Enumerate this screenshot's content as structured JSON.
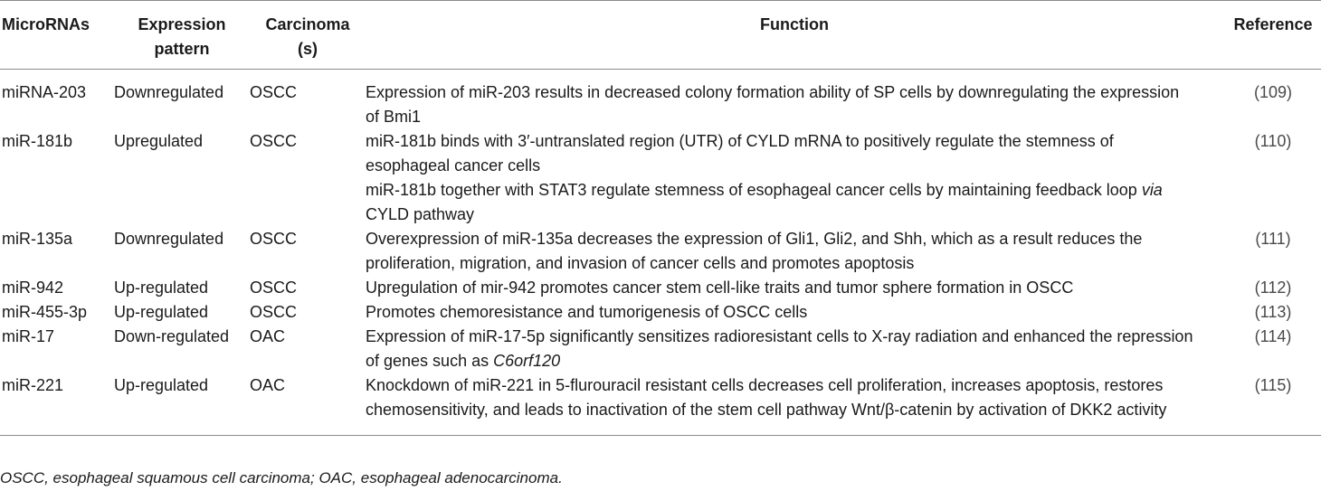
{
  "table": {
    "headers": {
      "microrna": "MicroRNAs",
      "expression_line1": "Expression",
      "expression_line2": "pattern",
      "carcinoma_line1": "Carcinoma",
      "carcinoma_line2": "(s)",
      "function": "Function",
      "reference": "Reference"
    },
    "rows": [
      {
        "microrna": "miRNA-203",
        "expression": "Downregulated",
        "carcinoma": "OSCC",
        "functions": [
          {
            "pre": "Expression of miR-203 results in decreased colony formation ability of SP cells by downregulating the expression of Bmi1",
            "italic": "",
            "post": ""
          }
        ],
        "reference": "(109)"
      },
      {
        "microrna": "miR-181b",
        "expression": "Upregulated",
        "carcinoma": "OSCC",
        "functions": [
          {
            "pre": "miR-181b binds with 3′-untranslated region (UTR) of CYLD mRNA to positively regulate the stemness of esophageal cancer cells",
            "italic": "",
            "post": ""
          },
          {
            "pre": "miR-181b together with STAT3 regulate stemness of esophageal cancer cells by maintaining feedback loop ",
            "italic": "via",
            "post": " CYLD pathway"
          }
        ],
        "reference": "(110)"
      },
      {
        "microrna": "miR-135a",
        "expression": "Downregulated",
        "carcinoma": "OSCC",
        "functions": [
          {
            "pre": "Overexpression of miR-135a decreases the expression of Gli1, Gli2, and Shh, which as a result reduces the proliferation, migration, and invasion of cancer cells and promotes apoptosis",
            "italic": "",
            "post": ""
          }
        ],
        "reference": "(111)"
      },
      {
        "microrna": "miR-942",
        "expression": "Up-regulated",
        "carcinoma": "OSCC",
        "functions": [
          {
            "pre": "Upregulation of mir-942 promotes cancer stem cell-like traits and tumor sphere formation in OSCC",
            "italic": "",
            "post": ""
          }
        ],
        "reference": "(112)"
      },
      {
        "microrna": "miR-455-3p",
        "expression": "Up-regulated",
        "carcinoma": "OSCC",
        "functions": [
          {
            "pre": "Promotes chemoresistance and tumorigenesis of OSCC cells",
            "italic": "",
            "post": ""
          }
        ],
        "reference": "(113)"
      },
      {
        "microrna": "miR-17",
        "expression": "Down-regulated",
        "carcinoma": "OAC",
        "functions": [
          {
            "pre": "Expression of miR-17-5p significantly sensitizes radioresistant cells to X-ray radiation and enhanced the repression of genes such as ",
            "italic": "C6orf120",
            "post": ""
          }
        ],
        "reference": "(114)"
      },
      {
        "microrna": "miR-221",
        "expression": "Up-regulated",
        "carcinoma": "OAC",
        "functions": [
          {
            "pre": "Knockdown of miR-221 in 5-flurouracil resistant cells decreases cell proliferation, increases apoptosis, restores chemosensitivity, and leads to inactivation of the stem cell pathway Wnt/β-catenin by activation of DKK2 activity",
            "italic": "",
            "post": ""
          }
        ],
        "reference": "(115)"
      }
    ]
  },
  "footnote": "OSCC, esophageal squamous cell carcinoma; OAC, esophageal adenocarcinoma."
}
